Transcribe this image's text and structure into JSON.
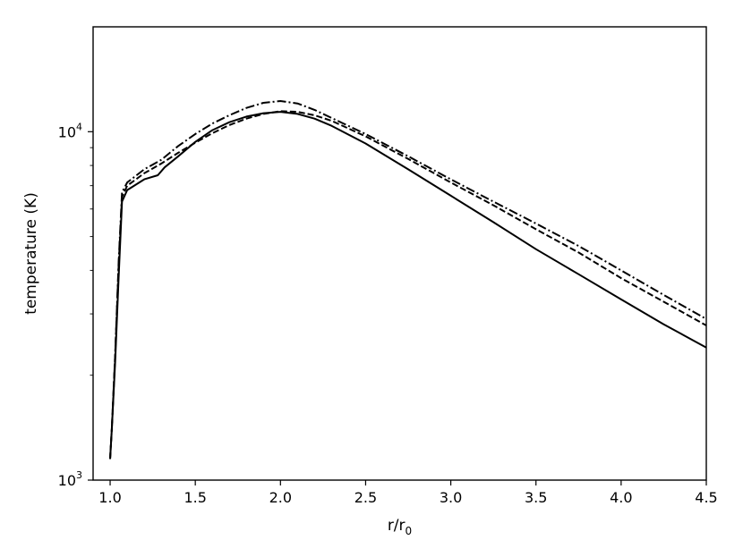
{
  "chart_data": {
    "type": "line",
    "title": "",
    "xlabel": "r/r",
    "xlabel_sub": "0",
    "ylabel": "temperature (K)",
    "xlim": [
      0.9,
      4.5
    ],
    "ylim": [
      1000,
      20000
    ],
    "yscale": "log",
    "grid": false,
    "x_ticks": [
      {
        "value": 1.0,
        "label": "1.0"
      },
      {
        "value": 1.5,
        "label": "1.5"
      },
      {
        "value": 2.0,
        "label": "2.0"
      },
      {
        "value": 2.5,
        "label": "2.5"
      },
      {
        "value": 3.0,
        "label": "3.0"
      },
      {
        "value": 3.5,
        "label": "3.5"
      },
      {
        "value": 4.0,
        "label": "4.0"
      },
      {
        "value": 4.5,
        "label": "4.5"
      }
    ],
    "y_ticks": [
      {
        "value": 1000,
        "base": "10",
        "exp": "3"
      },
      {
        "value": 10000,
        "base": "10",
        "exp": "4"
      }
    ],
    "series": [
      {
        "style": "solid",
        "color": "#000000",
        "x": [
          1.0,
          1.01,
          1.03,
          1.05,
          1.07,
          1.1,
          1.2,
          1.28,
          1.32,
          1.4,
          1.5,
          1.6,
          1.7,
          1.8,
          1.9,
          2.0,
          2.1,
          2.2,
          2.3,
          2.5,
          2.75,
          3.0,
          3.25,
          3.5,
          3.75,
          4.0,
          4.25,
          4.5
        ],
        "y": [
          1150,
          1400,
          2200,
          3800,
          6300,
          6800,
          7300,
          7500,
          7900,
          8500,
          9350,
          10100,
          10650,
          11050,
          11300,
          11400,
          11250,
          10900,
          10400,
          9250,
          7800,
          6550,
          5500,
          4600,
          3900,
          3300,
          2800,
          2400
        ]
      },
      {
        "style": "dashed",
        "color": "#000000",
        "x": [
          1.0,
          1.01,
          1.03,
          1.05,
          1.07,
          1.1,
          1.2,
          1.3,
          1.4,
          1.5,
          1.6,
          1.7,
          1.8,
          1.9,
          2.0,
          2.1,
          2.2,
          2.3,
          2.5,
          2.75,
          3.0,
          3.25,
          3.5,
          3.75,
          4.0,
          4.25,
          4.5
        ],
        "y": [
          1150,
          1400,
          2300,
          4100,
          6500,
          7000,
          7600,
          8100,
          8700,
          9300,
          9900,
          10450,
          10900,
          11250,
          11450,
          11400,
          11150,
          10750,
          9700,
          8350,
          7150,
          6150,
          5250,
          4500,
          3800,
          3250,
          2780
        ]
      },
      {
        "style": "dashdot",
        "color": "#000000",
        "x": [
          1.0,
          1.01,
          1.03,
          1.05,
          1.07,
          1.1,
          1.2,
          1.3,
          1.4,
          1.5,
          1.6,
          1.7,
          1.8,
          1.9,
          2.0,
          2.1,
          2.2,
          2.3,
          2.5,
          2.75,
          3.0,
          3.25,
          3.5,
          3.75,
          4.0,
          4.25,
          4.5
        ],
        "y": [
          1150,
          1400,
          2300,
          4200,
          6700,
          7150,
          7800,
          8300,
          9100,
          9850,
          10550,
          11150,
          11700,
          12100,
          12250,
          12050,
          11550,
          10950,
          9850,
          8500,
          7300,
          6300,
          5450,
          4700,
          4000,
          3400,
          2900
        ]
      }
    ]
  }
}
